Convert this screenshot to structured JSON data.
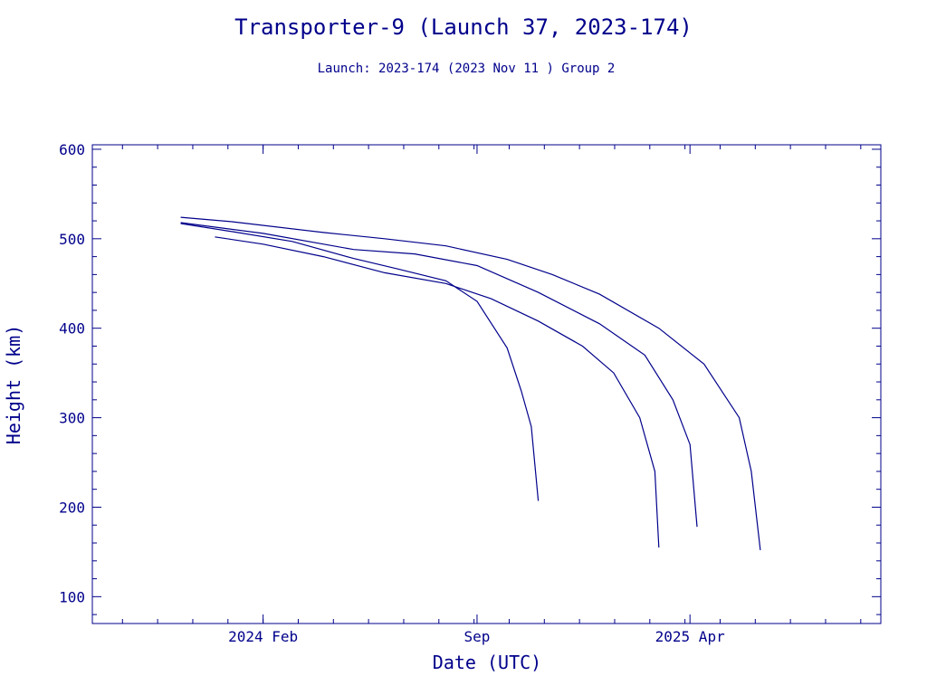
{
  "chart_data": {
    "type": "line",
    "title": "Transporter-9 (Launch 37, 2023-174)",
    "subtitle": "Launch: 2023-174  (2023 Nov 11 )  Group 2",
    "xlabel": "Date (UTC)",
    "ylabel": "Height (km)",
    "xlim": [
      "2023-08-15",
      "2025-10-08"
    ],
    "ylim": [
      70,
      605
    ],
    "x_ticks": [
      {
        "date": "2024-02-01",
        "label": "2024 Feb"
      },
      {
        "date": "2024-09-01",
        "label": "Sep"
      },
      {
        "date": "2025-04-01",
        "label": "2025 Apr"
      }
    ],
    "y_ticks": [
      100,
      200,
      300,
      400,
      500,
      600
    ],
    "grid": false,
    "colors": {
      "ink": "#00008b",
      "background": "#ffffff"
    },
    "series": [
      {
        "points": [
          [
            "2023-11-11",
            517
          ],
          [
            "2024-01-01",
            508
          ],
          [
            "2024-03-01",
            497
          ],
          [
            "2024-05-01",
            478
          ],
          [
            "2024-06-15",
            466
          ],
          [
            "2024-08-01",
            453
          ],
          [
            "2024-09-01",
            430
          ],
          [
            "2024-10-01",
            378
          ],
          [
            "2024-10-15",
            330
          ],
          [
            "2024-10-25",
            290
          ],
          [
            "2024-11-01",
            207
          ]
        ]
      },
      {
        "points": [
          [
            "2023-12-15",
            502
          ],
          [
            "2024-02-01",
            494
          ],
          [
            "2024-04-01",
            480
          ],
          [
            "2024-06-01",
            462
          ],
          [
            "2024-08-01",
            450
          ],
          [
            "2024-09-15",
            433
          ],
          [
            "2024-11-01",
            408
          ],
          [
            "2024-12-15",
            380
          ],
          [
            "2025-01-15",
            350
          ],
          [
            "2025-02-10",
            300
          ],
          [
            "2025-02-25",
            240
          ],
          [
            "2025-03-01",
            155
          ]
        ]
      },
      {
        "points": [
          [
            "2023-11-11",
            518
          ],
          [
            "2024-02-01",
            506
          ],
          [
            "2024-05-01",
            488
          ],
          [
            "2024-07-01",
            483
          ],
          [
            "2024-09-01",
            470
          ],
          [
            "2024-11-01",
            440
          ],
          [
            "2025-01-01",
            405
          ],
          [
            "2025-02-15",
            370
          ],
          [
            "2025-03-15",
            320
          ],
          [
            "2025-04-01",
            270
          ],
          [
            "2025-04-08",
            178
          ]
        ]
      },
      {
        "points": [
          [
            "2023-11-11",
            524
          ],
          [
            "2024-01-01",
            519
          ],
          [
            "2024-04-01",
            507
          ],
          [
            "2024-06-01",
            500
          ],
          [
            "2024-08-01",
            492
          ],
          [
            "2024-10-01",
            477
          ],
          [
            "2024-11-15",
            460
          ],
          [
            "2025-01-01",
            438
          ],
          [
            "2025-03-01",
            400
          ],
          [
            "2025-04-15",
            360
          ],
          [
            "2025-05-20",
            300
          ],
          [
            "2025-06-01",
            240
          ],
          [
            "2025-06-10",
            152
          ]
        ]
      }
    ]
  }
}
